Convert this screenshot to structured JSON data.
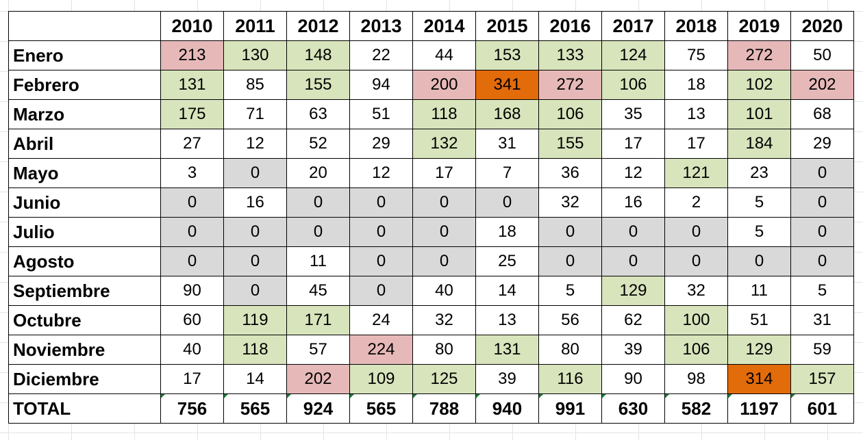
{
  "table": {
    "corner": "",
    "years": [
      "2010",
      "2011",
      "2012",
      "2013",
      "2014",
      "2015",
      "2016",
      "2017",
      "2018",
      "2019",
      "2020"
    ],
    "rows": [
      {
        "month": "Enero",
        "values": [
          "213",
          "130",
          "148",
          "22",
          "44",
          "153",
          "133",
          "124",
          "75",
          "272",
          "50"
        ],
        "fills": [
          "red",
          "green",
          "green",
          "",
          "",
          "green",
          "green",
          "green",
          "",
          "red",
          ""
        ]
      },
      {
        "month": "Febrero",
        "values": [
          "131",
          "85",
          "155",
          "94",
          "200",
          "341",
          "272",
          "106",
          "18",
          "102",
          "202"
        ],
        "fills": [
          "green",
          "",
          "green",
          "",
          "red",
          "orange",
          "red",
          "green",
          "",
          "green",
          "red"
        ]
      },
      {
        "month": "Marzo",
        "values": [
          "175",
          "71",
          "63",
          "51",
          "118",
          "168",
          "106",
          "35",
          "13",
          "101",
          "68"
        ],
        "fills": [
          "green",
          "",
          "",
          "",
          "green",
          "green",
          "green",
          "",
          "",
          "green",
          ""
        ]
      },
      {
        "month": "Abril",
        "values": [
          "27",
          "12",
          "52",
          "29",
          "132",
          "31",
          "155",
          "17",
          "17",
          "184",
          "29"
        ],
        "fills": [
          "",
          "",
          "",
          "",
          "green",
          "",
          "green",
          "",
          "",
          "green",
          ""
        ]
      },
      {
        "month": "Mayo",
        "values": [
          "3",
          "0",
          "20",
          "12",
          "17",
          "7",
          "36",
          "12",
          "121",
          "23",
          "0"
        ],
        "fills": [
          "",
          "gray",
          "",
          "",
          "",
          "",
          "",
          "",
          "green",
          "",
          "gray"
        ]
      },
      {
        "month": "Junio",
        "values": [
          "0",
          "16",
          "0",
          "0",
          "0",
          "0",
          "32",
          "16",
          "2",
          "5",
          "0"
        ],
        "fills": [
          "gray",
          "",
          "gray",
          "gray",
          "gray",
          "gray",
          "",
          "",
          "",
          "",
          "gray"
        ]
      },
      {
        "month": "Julio",
        "values": [
          "0",
          "0",
          "0",
          "0",
          "0",
          "18",
          "0",
          "0",
          "0",
          "5",
          "0"
        ],
        "fills": [
          "gray",
          "gray",
          "gray",
          "gray",
          "gray",
          "",
          "gray",
          "gray",
          "gray",
          "",
          "gray"
        ]
      },
      {
        "month": "Agosto",
        "values": [
          "0",
          "0",
          "11",
          "0",
          "0",
          "25",
          "0",
          "0",
          "0",
          "0",
          "0"
        ],
        "fills": [
          "gray",
          "gray",
          "",
          "gray",
          "gray",
          "",
          "gray",
          "gray",
          "gray",
          "gray",
          "gray"
        ]
      },
      {
        "month": "Septiembre",
        "values": [
          "90",
          "0",
          "45",
          "0",
          "40",
          "14",
          "5",
          "129",
          "32",
          "11",
          "5"
        ],
        "fills": [
          "",
          "gray",
          "",
          "gray",
          "",
          "",
          "",
          "green",
          "",
          "",
          ""
        ]
      },
      {
        "month": "Octubre",
        "values": [
          "60",
          "119",
          "171",
          "24",
          "32",
          "13",
          "56",
          "62",
          "100",
          "51",
          "31"
        ],
        "fills": [
          "",
          "green",
          "green",
          "",
          "",
          "",
          "",
          "",
          "green",
          "",
          ""
        ]
      },
      {
        "month": "Noviembre",
        "values": [
          "40",
          "118",
          "57",
          "224",
          "80",
          "131",
          "80",
          "39",
          "106",
          "129",
          "59"
        ],
        "fills": [
          "",
          "green",
          "",
          "red",
          "",
          "green",
          "",
          "",
          "green",
          "green",
          ""
        ]
      },
      {
        "month": "Diciembre",
        "values": [
          "17",
          "14",
          "202",
          "109",
          "125",
          "39",
          "116",
          "90",
          "98",
          "314",
          "157"
        ],
        "fills": [
          "",
          "",
          "red",
          "green",
          "green",
          "",
          "green",
          "",
          "",
          "orange",
          "green"
        ]
      }
    ],
    "total": {
      "label": "TOTAL",
      "values": [
        "756",
        "565",
        "924",
        "565",
        "788",
        "940",
        "991",
        "630",
        "582",
        "1197",
        "601"
      ]
    }
  },
  "colors": {
    "green": "#d8e4bc",
    "red": "#e6b9b8",
    "gray": "#d9d9d9",
    "orange": "#e26b0a",
    "border": "#000000",
    "error_indicator": "#1e7a3c"
  }
}
